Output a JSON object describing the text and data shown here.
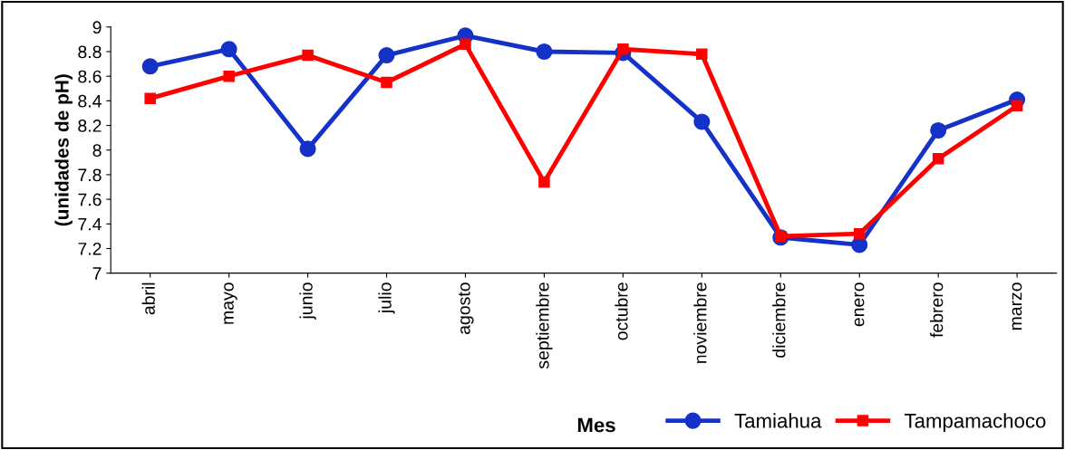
{
  "chart_data": {
    "type": "line",
    "ylabel": "(unidades de pH)",
    "xlabel": "Mes",
    "categories": [
      "abril",
      "mayo",
      "junio",
      "julio",
      "agosto",
      "septiembre",
      "octubre",
      "noviembre",
      "diciembre",
      "enero",
      "febrero",
      "marzo"
    ],
    "series": [
      {
        "name": "Tamiahua",
        "color": "#1432c8",
        "marker": "circle",
        "values": [
          8.68,
          8.82,
          8.01,
          8.77,
          8.93,
          8.8,
          8.79,
          8.23,
          7.29,
          7.23,
          8.16,
          8.41
        ]
      },
      {
        "name": "Tampamachoco",
        "color": "#ff0000",
        "marker": "square",
        "values": [
          8.42,
          8.6,
          8.77,
          8.55,
          8.86,
          7.74,
          8.82,
          8.78,
          7.3,
          7.32,
          7.93,
          8.36
        ]
      }
    ],
    "ylim": [
      7,
      9
    ],
    "yticks": [
      7,
      7.2,
      7.4,
      7.6,
      7.8,
      8,
      8.2,
      8.4,
      8.6,
      8.8,
      9
    ],
    "grid": false,
    "legend": "bottom",
    "line_style": "solid"
  }
}
